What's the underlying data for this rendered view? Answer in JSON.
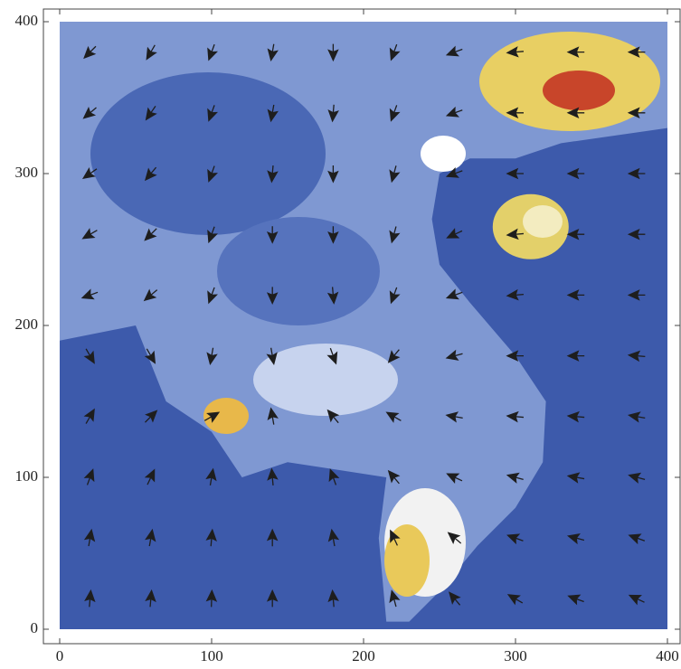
{
  "chart_data": {
    "type": "vector",
    "xlim": [
      0,
      400
    ],
    "ylim": [
      0,
      400
    ],
    "xticks": [
      0,
      100,
      200,
      300,
      400
    ],
    "yticks": [
      0,
      100,
      200,
      300,
      400
    ],
    "color": "#1e1e1e",
    "x": [
      20,
      60,
      100,
      140,
      180,
      220,
      260,
      300,
      340,
      380
    ],
    "y": [
      380,
      340,
      300,
      260,
      220,
      180,
      140,
      100,
      60,
      20
    ],
    "angle": [
      [
        225,
        240,
        250,
        260,
        270,
        250,
        200,
        185,
        180,
        180
      ],
      [
        220,
        235,
        250,
        260,
        265,
        250,
        200,
        180,
        180,
        180
      ],
      [
        215,
        230,
        250,
        265,
        270,
        255,
        200,
        180,
        180,
        180
      ],
      [
        210,
        225,
        250,
        270,
        270,
        255,
        205,
        185,
        180,
        180
      ],
      [
        200,
        220,
        250,
        270,
        275,
        250,
        200,
        185,
        180,
        180
      ],
      [
        300,
        300,
        260,
        280,
        290,
        230,
        195,
        180,
        180,
        175
      ],
      [
        60,
        45,
        30,
        100,
        130,
        150,
        170,
        175,
        175,
        170
      ],
      [
        70,
        65,
        80,
        95,
        110,
        130,
        155,
        165,
        170,
        165
      ],
      [
        80,
        80,
        85,
        90,
        100,
        115,
        140,
        160,
        165,
        160
      ],
      [
        85,
        85,
        88,
        90,
        95,
        105,
        130,
        150,
        160,
        155
      ]
    ]
  }
}
